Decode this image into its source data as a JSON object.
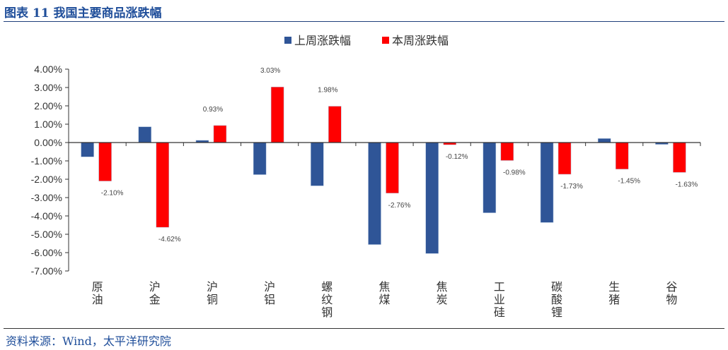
{
  "title": "图表 11  我国主要商品涨跌幅",
  "source": "资料来源：Wind，太平洋研究院",
  "chart_data": {
    "type": "bar",
    "title": "",
    "categories": [
      "原油",
      "沪金",
      "沪铜",
      "沪铝",
      "螺纹钢",
      "焦煤",
      "焦炭",
      "工业硅",
      "碳酸锂",
      "生猪",
      "谷物"
    ],
    "series": [
      {
        "name": "上周涨跌幅",
        "color": "#2f5597",
        "values": [
          -0.78,
          0.86,
          0.12,
          -1.75,
          -2.36,
          -5.56,
          -6.05,
          -3.83,
          -4.36,
          0.22,
          -0.1
        ]
      },
      {
        "name": "本周涨跌幅",
        "color": "#ff0000",
        "values": [
          -2.1,
          -4.62,
          0.93,
          3.03,
          1.98,
          -2.76,
          -0.12,
          -0.98,
          -1.73,
          -1.45,
          -1.63
        ],
        "data_labels": [
          "-2.10%",
          "-4.62%",
          "0.93%",
          "3.03%",
          "1.98%",
          "-2.76%",
          "-0.12%",
          "-0.98%",
          "-1.73%",
          "-1.45%",
          "-1.63%"
        ]
      }
    ],
    "ylim": [
      -7,
      4
    ],
    "yticks": [
      "4.00%",
      "3.00%",
      "2.00%",
      "1.00%",
      "0.00%",
      "-1.00%",
      "-2.00%",
      "-3.00%",
      "-4.00%",
      "-5.00%",
      "-6.00%",
      "-7.00%"
    ],
    "xlabel": "",
    "ylabel": "",
    "grid": false,
    "legend": "top-center"
  }
}
